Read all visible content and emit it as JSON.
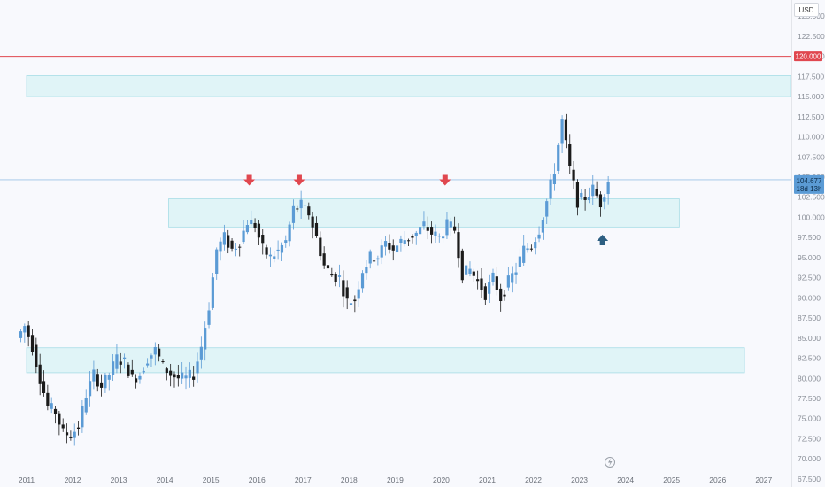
{
  "toolbar": {
    "currency_label": "USD"
  },
  "price_tag": {
    "value": "104.677",
    "countdown": "18d 13h"
  },
  "level_tag": {
    "value": "120.000"
  },
  "colors": {
    "up": "#5b9bd5",
    "down": "#1b1b1b",
    "zone_fill": "#e0f4f7",
    "zone_border": "#a8dde6",
    "level_line": "#e0474f",
    "price_line": "#9dc3e6",
    "arrow_down": "#e0474f",
    "arrow_up": "#2d5f82"
  },
  "icons": [
    "lightning-icon",
    "down-arrow-icon",
    "up-arrow-icon"
  ],
  "chart_data": {
    "type": "candlestick",
    "timeframe": "monthly",
    "ylim": [
      66.5,
      127
    ],
    "y_ticks": [
      "67.500",
      "70.000",
      "72.500",
      "75.000",
      "77.500",
      "80.000",
      "82.500",
      "85.000",
      "87.500",
      "90.000",
      "92.500",
      "95.000",
      "97.500",
      "100.000",
      "102.500",
      "105.000",
      "107.500",
      "110.000",
      "112.500",
      "115.000",
      "117.500",
      "120.000",
      "122.500",
      "125.000"
    ],
    "x_ticks": [
      "2011",
      "2012",
      "2013",
      "2014",
      "2015",
      "2016",
      "2017",
      "2018",
      "2019",
      "2020",
      "2021",
      "2022",
      "2023",
      "2024",
      "2025",
      "2026",
      "2027"
    ],
    "horizontal_level": 120.0,
    "last_price": 104.677,
    "zones": [
      {
        "x_from": "2011-01",
        "x_to": "2027-12",
        "y_from": 115.0,
        "y_to": 117.6
      },
      {
        "x_from": "2014-02",
        "x_to": "2025-03",
        "y_from": 98.8,
        "y_to": 102.3
      },
      {
        "x_from": "2011-01",
        "x_to": "2026-08",
        "y_from": 80.7,
        "y_to": 83.8
      }
    ],
    "markers": [
      {
        "type": "down-arrow",
        "date": "2015-11",
        "price": 104.5
      },
      {
        "type": "down-arrow",
        "date": "2016-12",
        "price": 104.5
      },
      {
        "type": "down-arrow",
        "date": "2020-02",
        "price": 104.5
      },
      {
        "type": "up-arrow",
        "date": "2023-07",
        "price": 97.3
      }
    ],
    "anchors": [
      [
        "2010-11",
        85.0
      ],
      [
        "2011-01",
        86.5
      ],
      [
        "2011-03",
        84.0
      ],
      [
        "2011-05",
        80.0
      ],
      [
        "2011-07",
        76.5
      ],
      [
        "2011-09",
        75.8
      ],
      [
        "2011-11",
        73.2
      ],
      [
        "2012-01",
        73.0
      ],
      [
        "2012-03",
        74.0
      ],
      [
        "2012-05",
        78.0
      ],
      [
        "2012-07",
        80.5
      ],
      [
        "2012-09",
        79.0
      ],
      [
        "2012-11",
        80.5
      ],
      [
        "2013-01",
        82.5
      ],
      [
        "2013-03",
        82.0
      ],
      [
        "2013-05",
        80.0
      ],
      [
        "2013-07",
        80.5
      ],
      [
        "2013-09",
        82.5
      ],
      [
        "2013-11",
        83.5
      ],
      [
        "2014-01",
        81.5
      ],
      [
        "2014-03",
        80.5
      ],
      [
        "2014-05",
        80.0
      ],
      [
        "2014-07",
        80.0
      ],
      [
        "2014-09",
        80.5
      ],
      [
        "2014-11",
        84.0
      ],
      [
        "2015-01",
        89.0
      ],
      [
        "2015-03",
        96.0
      ],
      [
        "2015-05",
        97.5
      ],
      [
        "2015-07",
        96.0
      ],
      [
        "2015-09",
        97.0
      ],
      [
        "2015-11",
        99.5
      ],
      [
        "2016-01",
        99.0
      ],
      [
        "2016-03",
        96.0
      ],
      [
        "2016-05",
        95.0
      ],
      [
        "2016-07",
        95.8
      ],
      [
        "2016-09",
        97.0
      ],
      [
        "2016-11",
        101.0
      ],
      [
        "2017-01",
        101.5
      ],
      [
        "2017-03",
        100.5
      ],
      [
        "2017-05",
        97.5
      ],
      [
        "2017-07",
        94.0
      ],
      [
        "2017-09",
        92.8
      ],
      [
        "2017-11",
        92.5
      ],
      [
        "2018-01",
        89.5
      ],
      [
        "2018-03",
        89.8
      ],
      [
        "2018-05",
        93.5
      ],
      [
        "2018-07",
        95.0
      ],
      [
        "2018-09",
        95.2
      ],
      [
        "2018-11",
        96.8
      ],
      [
        "2019-01",
        96.0
      ],
      [
        "2019-03",
        97.0
      ],
      [
        "2019-05",
        97.5
      ],
      [
        "2019-07",
        98.0
      ],
      [
        "2019-09",
        99.0
      ],
      [
        "2019-11",
        98.0
      ],
      [
        "2020-01",
        97.5
      ],
      [
        "2020-03",
        99.0
      ],
      [
        "2020-05",
        98.5
      ],
      [
        "2020-07",
        93.0
      ],
      [
        "2020-09",
        93.5
      ],
      [
        "2020-11",
        92.0
      ],
      [
        "2021-01",
        90.5
      ],
      [
        "2021-03",
        92.5
      ],
      [
        "2021-05",
        90.0
      ],
      [
        "2021-07",
        92.0
      ],
      [
        "2021-09",
        93.5
      ],
      [
        "2021-11",
        96.0
      ],
      [
        "2022-01",
        96.5
      ],
      [
        "2022-03",
        98.5
      ],
      [
        "2022-05",
        102.0
      ],
      [
        "2022-07",
        106.0
      ],
      [
        "2022-09",
        112.0
      ],
      [
        "2022-11",
        106.0
      ],
      [
        "2023-01",
        102.0
      ],
      [
        "2023-03",
        102.5
      ],
      [
        "2023-05",
        103.5
      ],
      [
        "2023-07",
        101.8
      ],
      [
        "2023-09",
        104.7
      ]
    ]
  }
}
